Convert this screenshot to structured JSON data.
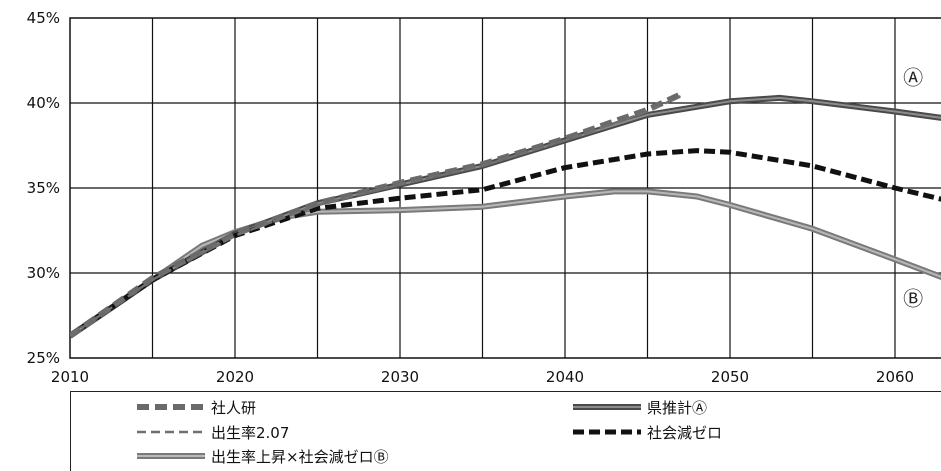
{
  "chart_data": {
    "type": "line",
    "title": "",
    "xlabel": "",
    "ylabel": "",
    "xlim": [
      2010,
      2063
    ],
    "ylim": [
      25,
      45
    ],
    "x_ticks": [
      "2010",
      "2020",
      "2030",
      "2040",
      "2050",
      "2060"
    ],
    "y_ticks": [
      "25%",
      "30%",
      "35%",
      "40%",
      "45%"
    ],
    "grid": true,
    "series": [
      {
        "name": "社人研",
        "style": "dash-thick-gray",
        "x": [
          2010,
          2015,
          2020,
          2025,
          2030,
          2035,
          2040,
          2045,
          2047
        ],
        "y": [
          26.3,
          29.7,
          32.3,
          34.1,
          35.3,
          36.4,
          37.9,
          39.6,
          40.5
        ]
      },
      {
        "name": "出生率2.07",
        "style": "dash-thin-gray",
        "x": [
          2010,
          2015,
          2020,
          2025,
          2030,
          2035,
          2040,
          2045,
          2047
        ],
        "y": [
          26.3,
          29.6,
          32.2,
          34.0,
          35.2,
          36.3,
          37.8,
          39.5,
          40.4
        ]
      },
      {
        "name": "出生率上昇×社会減ゼロⒷ",
        "style": "solid-double-gray",
        "x": [
          2010,
          2015,
          2018,
          2020,
          2023,
          2025,
          2030,
          2035,
          2040,
          2043,
          2045,
          2048,
          2050,
          2055,
          2060,
          2063
        ],
        "y": [
          26.3,
          29.6,
          31.6,
          32.4,
          33.3,
          33.6,
          33.7,
          33.9,
          34.5,
          34.8,
          34.8,
          34.5,
          34.0,
          32.6,
          30.8,
          29.7
        ]
      },
      {
        "name": "県推計Ⓐ",
        "style": "solid-double-dark",
        "x": [
          2010,
          2015,
          2020,
          2025,
          2030,
          2035,
          2040,
          2045,
          2050,
          2053,
          2055,
          2060,
          2063
        ],
        "y": [
          26.3,
          29.6,
          32.3,
          34.1,
          35.2,
          36.3,
          37.8,
          39.3,
          40.1,
          40.3,
          40.1,
          39.5,
          39.1
        ]
      },
      {
        "name": "社会減ゼロ",
        "style": "dash-thick-black",
        "x": [
          2010,
          2015,
          2020,
          2025,
          2030,
          2035,
          2040,
          2045,
          2048,
          2050,
          2055,
          2060,
          2063
        ],
        "y": [
          26.3,
          29.6,
          32.2,
          33.8,
          34.4,
          34.9,
          36.2,
          37.0,
          37.2,
          37.1,
          36.3,
          35.0,
          34.3
        ]
      }
    ],
    "annotations": [
      {
        "text": "Ⓐ",
        "x": 2061.1,
        "y": 41.1
      },
      {
        "text": "Ⓑ",
        "x": 2061.1,
        "y": 28.1
      }
    ],
    "legend": [
      {
        "name": "社人研",
        "style": "dash-thick-gray"
      },
      {
        "name": "県推計Ⓐ",
        "style": "solid-double-dark"
      },
      {
        "name": "出生率2.07",
        "style": "dash-thin-gray"
      },
      {
        "name": "社会減ゼロ",
        "style": "dash-thick-black"
      },
      {
        "name": "出生率上昇×社会減ゼロⒷ",
        "style": "solid-double-gray"
      }
    ],
    "legend_position": "bottom"
  }
}
